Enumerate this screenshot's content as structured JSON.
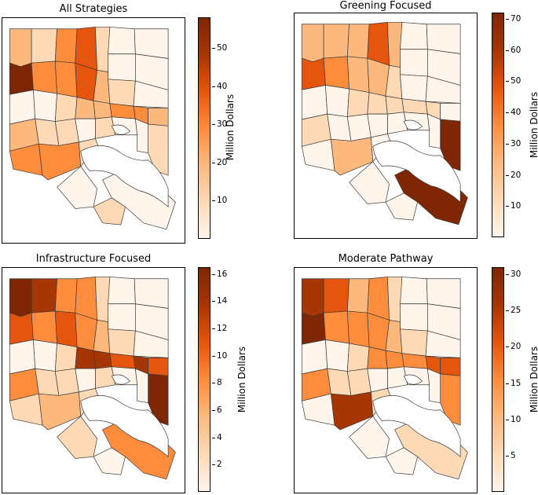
{
  "figure": {
    "colors": {
      "low": "#fff5eb",
      "c1": "#fdd9b5",
      "c2": "#fdb97d",
      "c3": "#fd8d3c",
      "c4": "#e6550d",
      "c5": "#a63603",
      "c6": "#7f2704"
    },
    "panels": [
      {
        "title": "All Strategies",
        "colorbar_label": "Million Dollars",
        "vmin": 0,
        "vmax": 58,
        "ticks": [
          10,
          20,
          30,
          40,
          50
        ],
        "region_levels": [
          2,
          1,
          3,
          4,
          1,
          0,
          0,
          0,
          0,
          6,
          3,
          3,
          4,
          2,
          1,
          0,
          0,
          0,
          1,
          2,
          2,
          3,
          3,
          2,
          2,
          1,
          1,
          1,
          3,
          3,
          1,
          1,
          0,
          0,
          1,
          0,
          0,
          0
        ]
      },
      {
        "title": "Greening Focused",
        "colorbar_label": "Million Dollars",
        "vmin": 0,
        "vmax": 72,
        "ticks": [
          10,
          20,
          30,
          40,
          50,
          60,
          70
        ],
        "region_levels": [
          2,
          2,
          2,
          4,
          2,
          0,
          0,
          0,
          0,
          4,
          3,
          2,
          2,
          1,
          0,
          0,
          0,
          0,
          1,
          1,
          1,
          1,
          1,
          0,
          1,
          0,
          0,
          6,
          0,
          2,
          0,
          0,
          6,
          0,
          0,
          0,
          0,
          0
        ]
      },
      {
        "title": "Infrastructure Focused",
        "colorbar_label": "Million Dollars",
        "vmin": 0,
        "vmax": 16.5,
        "ticks": [
          2,
          4,
          6,
          8,
          10,
          12,
          14,
          16
        ],
        "region_levels": [
          6,
          5,
          3,
          3,
          1,
          0,
          0,
          0,
          0,
          4,
          3,
          4,
          3,
          2,
          1,
          0,
          0,
          0,
          1,
          5,
          5,
          4,
          5,
          4,
          3,
          1,
          1,
          6,
          1,
          2,
          1,
          1,
          3,
          1,
          0,
          0,
          0,
          0
        ]
      },
      {
        "title": "Moderate Pathway",
        "colorbar_label": "Million Dollars",
        "vmin": 0,
        "vmax": 31,
        "ticks": [
          5,
          10,
          15,
          20,
          25,
          30
        ],
        "region_levels": [
          5,
          4,
          2,
          3,
          1,
          0,
          0,
          0,
          0,
          6,
          3,
          3,
          3,
          2,
          1,
          0,
          0,
          0,
          1,
          3,
          3,
          3,
          4,
          4,
          3,
          1,
          1,
          3,
          0,
          5,
          1,
          0,
          1,
          0,
          0,
          0,
          0,
          0
        ]
      }
    ]
  }
}
